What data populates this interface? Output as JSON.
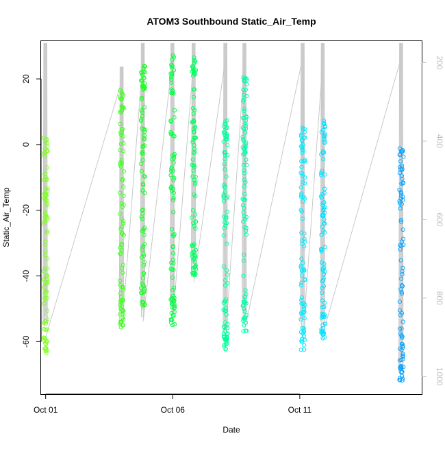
{
  "chart_data": {
    "type": "scatter",
    "title": "ATOM3 Southbound Static_Air_Temp",
    "xlabel": "Date",
    "ylabel": "Static_Air_Temp",
    "x_type": "date",
    "xlim": [
      "2016-09-30T19:40",
      "2016-10-15T19:10"
    ],
    "ylim": [
      -76,
      31.5
    ],
    "x_ticks": [
      {
        "value": "2016-10-01",
        "label": "Oct 01"
      },
      {
        "value": "2016-10-06",
        "label": "Oct 06"
      },
      {
        "value": "2016-10-11",
        "label": "Oct 11"
      }
    ],
    "y_ticks": [
      {
        "value": -60,
        "label": "-60"
      },
      {
        "value": -40,
        "label": "-40"
      },
      {
        "value": -20,
        "label": "-20"
      },
      {
        "value": 0,
        "label": "0"
      },
      {
        "value": 20,
        "label": "20"
      }
    ],
    "right_axis": {
      "label": "",
      "color": "#bfbfbf",
      "reversed": true,
      "lim": [
        1045,
        145
      ],
      "ticks": [
        200,
        400,
        600,
        800,
        1000
      ]
    },
    "marker": "open-circle",
    "grid": false,
    "legend": "none",
    "color_ramp": [
      "#7fff00",
      "#00ff40",
      "#00ffaa",
      "#00e5ff",
      "#0099ff"
    ],
    "series": [
      {
        "x": "2016-10-01T00:00",
        "color": "#80ff20",
        "temp_range": [
          -64.5,
          3.5
        ],
        "pressure_range": [
          150,
          900
        ]
      },
      {
        "x": "2016-10-04T00:00",
        "color": "#40ff20",
        "temp_range": [
          -56,
          16.5
        ],
        "pressure_range": [
          210,
          880
        ]
      },
      {
        "x": "2016-10-04T20:00",
        "color": "#18ff20",
        "temp_range": [
          -49,
          24.5
        ],
        "pressure_range": [
          150,
          860
        ]
      },
      {
        "x": "2016-10-06T00:00",
        "color": "#00ff40",
        "temp_range": [
          -55,
          27.5
        ],
        "pressure_range": [
          150,
          860
        ]
      },
      {
        "x": "2016-10-06T20:00",
        "color": "#00ff60",
        "temp_range": [
          -40,
          27.5
        ],
        "pressure_range": [
          150,
          760
        ]
      },
      {
        "x": "2016-10-08T02:00",
        "color": "#00ff9a",
        "temp_range": [
          -63,
          8.5
        ],
        "pressure_range": [
          150,
          900
        ]
      },
      {
        "x": "2016-10-08T20:00",
        "color": "#00ffaa",
        "temp_range": [
          -57,
          20.5
        ],
        "pressure_range": [
          150,
          880
        ]
      },
      {
        "x": "2016-10-11T03:00",
        "color": "#00eaff",
        "temp_range": [
          -62.5,
          6
        ],
        "pressure_range": [
          150,
          900
        ]
      },
      {
        "x": "2016-10-11T22:00",
        "color": "#00e0ff",
        "temp_range": [
          -59,
          7.5
        ],
        "pressure_range": [
          150,
          890
        ]
      },
      {
        "x": "2016-10-15T00:00",
        "color": "#0aa4ff",
        "temp_range": [
          -72,
          -0.5
        ],
        "pressure_range": [
          150,
          1010
        ]
      }
    ]
  }
}
